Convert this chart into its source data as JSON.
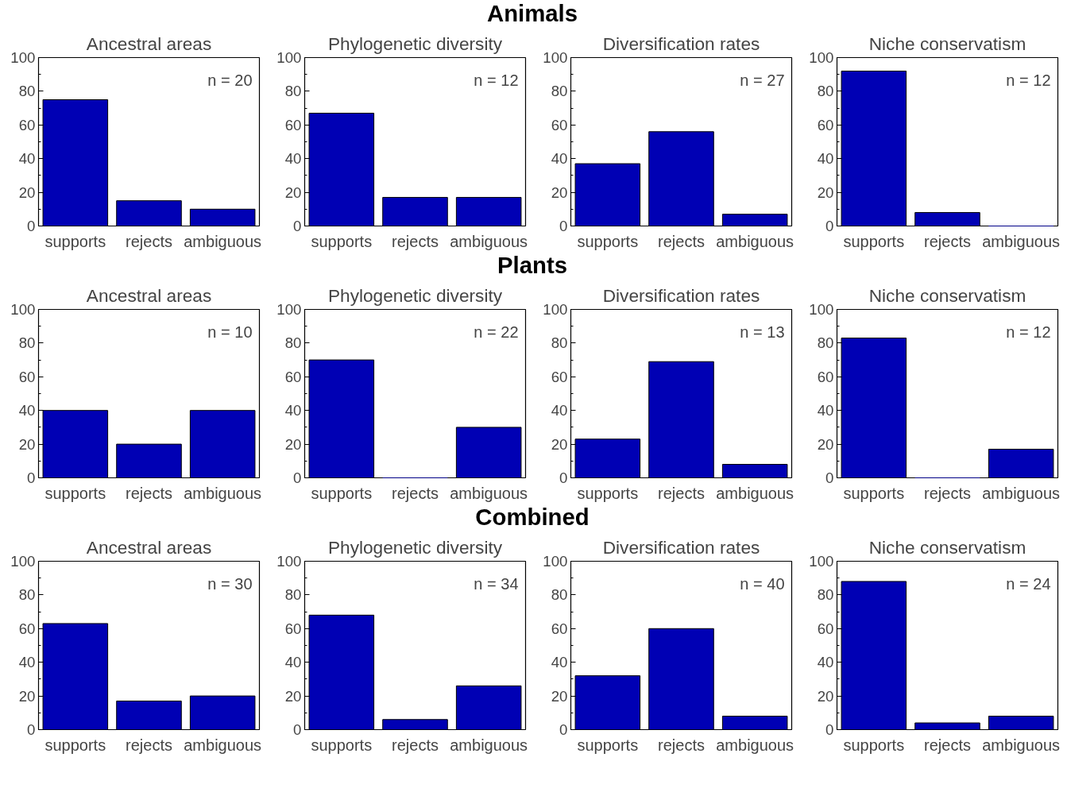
{
  "chart_data": [
    {
      "type": "bar",
      "title": "Ancestral areas",
      "categories": [
        "supports",
        "rejects",
        "ambiguous"
      ],
      "values": [
        75,
        15,
        10
      ],
      "color": "#0000b4",
      "ylim": [
        0,
        100
      ],
      "yticks": [
        0,
        20,
        40,
        60,
        80,
        100
      ],
      "annotations": [
        "n = 20"
      ],
      "grid": false
    },
    {
      "type": "bar",
      "title": "Phylogenetic diversity",
      "categories": [
        "supports",
        "rejects",
        "ambiguous"
      ],
      "values": [
        67,
        17,
        17
      ],
      "color": "#0000b4",
      "ylim": [
        0,
        100
      ],
      "yticks": [
        0,
        20,
        40,
        60,
        80,
        100
      ],
      "annotations": [
        "n = 12"
      ],
      "grid": false
    },
    {
      "type": "bar",
      "subtitle": "Animals",
      "title": "Diversification rates",
      "categories": [
        "supports",
        "rejects",
        "ambiguous"
      ],
      "values": [
        37,
        56,
        7
      ],
      "color": "#0000b4",
      "ylim": [
        0,
        100
      ],
      "yticks": [
        0,
        20,
        40,
        60,
        80,
        100
      ],
      "annotations": [
        "n = 27"
      ],
      "grid": false
    },
    {
      "type": "bar",
      "title": "Niche conservatism",
      "categories": [
        "supports",
        "rejects",
        "ambiguous"
      ],
      "values": [
        92,
        8,
        0
      ],
      "color": "#0000b4",
      "ylim": [
        0,
        100
      ],
      "yticks": [
        0,
        20,
        40,
        60,
        80,
        100
      ],
      "annotations": [
        "n = 12"
      ],
      "grid": false
    },
    {
      "type": "bar",
      "title": "Ancestral areas",
      "categories": [
        "supports",
        "rejects",
        "ambiguous"
      ],
      "values": [
        40,
        20,
        40
      ],
      "color": "#0000b4",
      "ylim": [
        0,
        100
      ],
      "yticks": [
        0,
        20,
        40,
        60,
        80,
        100
      ],
      "annotations": [
        "n = 10"
      ],
      "grid": false
    },
    {
      "type": "bar",
      "title": "Phylogenetic diversity",
      "categories": [
        "supports",
        "rejects",
        "ambiguous"
      ],
      "values": [
        70,
        0,
        30
      ],
      "color": "#0000b4",
      "ylim": [
        0,
        100
      ],
      "yticks": [
        0,
        20,
        40,
        60,
        80,
        100
      ],
      "annotations": [
        "n = 22"
      ],
      "grid": false
    },
    {
      "type": "bar",
      "subtitle": "Plants",
      "title": "Diversification rates",
      "categories": [
        "supports",
        "rejects",
        "ambiguous"
      ],
      "values": [
        23,
        69,
        8
      ],
      "color": "#0000b4",
      "ylim": [
        0,
        100
      ],
      "yticks": [
        0,
        20,
        40,
        60,
        80,
        100
      ],
      "annotations": [
        "n = 13"
      ],
      "grid": false
    },
    {
      "type": "bar",
      "title": "Niche conservatism",
      "categories": [
        "supports",
        "rejects",
        "ambiguous"
      ],
      "values": [
        83,
        0,
        17
      ],
      "color": "#0000b4",
      "ylim": [
        0,
        100
      ],
      "yticks": [
        0,
        20,
        40,
        60,
        80,
        100
      ],
      "annotations": [
        "n = 12"
      ],
      "grid": false
    },
    {
      "type": "bar",
      "title": "Ancestral areas",
      "categories": [
        "supports",
        "rejects",
        "ambiguous"
      ],
      "values": [
        63,
        17,
        20
      ],
      "color": "#0000b4",
      "ylim": [
        0,
        100
      ],
      "yticks": [
        0,
        20,
        40,
        60,
        80,
        100
      ],
      "annotations": [
        "n = 30"
      ],
      "grid": false
    },
    {
      "type": "bar",
      "title": "Phylogenetic diversity",
      "categories": [
        "supports",
        "rejects",
        "ambiguous"
      ],
      "values": [
        68,
        6,
        26
      ],
      "color": "#0000b4",
      "ylim": [
        0,
        100
      ],
      "yticks": [
        0,
        20,
        40,
        60,
        80,
        100
      ],
      "annotations": [
        "n = 34"
      ],
      "grid": false
    },
    {
      "type": "bar",
      "subtitle": "Combined",
      "title": "Diversification rates",
      "categories": [
        "supports",
        "rejects",
        "ambiguous"
      ],
      "values": [
        32,
        60,
        8
      ],
      "color": "#0000b4",
      "ylim": [
        0,
        100
      ],
      "yticks": [
        0,
        20,
        40,
        60,
        80,
        100
      ],
      "annotations": [
        "n = 40"
      ],
      "grid": false
    },
    {
      "type": "bar",
      "title": "Niche conservatism",
      "categories": [
        "supports",
        "rejects",
        "ambiguous"
      ],
      "values": [
        88,
        4,
        8
      ],
      "color": "#0000b4",
      "ylim": [
        0,
        100
      ],
      "yticks": [
        0,
        20,
        40,
        60,
        80,
        100
      ],
      "annotations": [
        "n = 24"
      ],
      "grid": false
    }
  ]
}
